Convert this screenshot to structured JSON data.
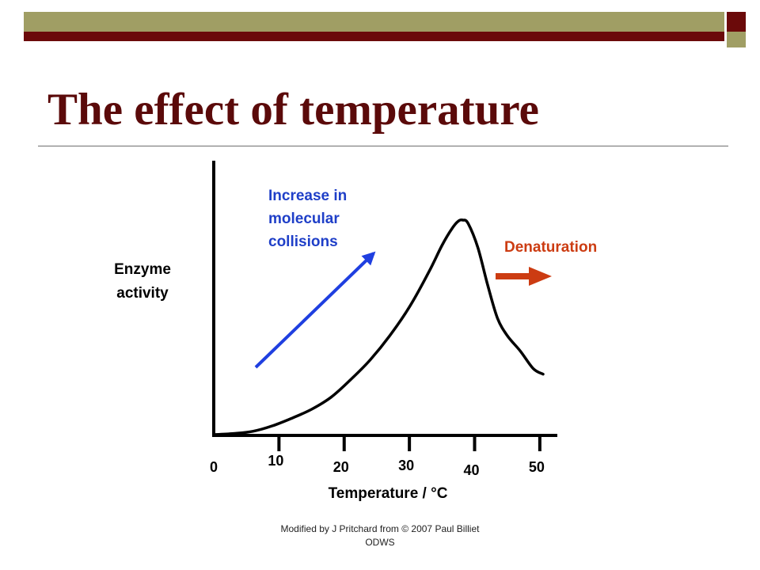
{
  "slide": {
    "title": "The effect of temperature",
    "footer_line1": "Modified by J Pritchard from © 2007 Paul Billiet",
    "footer_line2": "ODWS"
  },
  "theme": {
    "olive": "#a09e64",
    "maroon": "#6b0a0a",
    "title_color": "#5b0a0a",
    "blue_arrow": "#1f3fe0",
    "annotation_blue": "#1f3fc8",
    "denature_color": "#cc3c12"
  },
  "chart_data": {
    "type": "line",
    "title": "",
    "xlabel": "Temperature / °C",
    "ylabel_lines": [
      "Enzyme",
      "activity"
    ],
    "xlim": [
      0,
      52
    ],
    "ylim": [
      0,
      100
    ],
    "grid": false,
    "legend": "none",
    "x_ticks": [
      0,
      10,
      20,
      30,
      40,
      50
    ],
    "series": [
      {
        "x": [
          0,
          3,
          6,
          9,
          12,
          15,
          18,
          21,
          24,
          27,
          30,
          33,
          35,
          36.5,
          37.5,
          38.2,
          39,
          40.5,
          42,
          43.5,
          45,
          47,
          49,
          50.5
        ],
        "y": [
          0,
          0.5,
          1.5,
          4,
          7.5,
          11.5,
          17,
          25,
          34,
          45,
          58,
          74,
          86,
          93.5,
          97,
          97.5,
          96,
          85,
          68,
          53,
          45,
          38,
          30,
          27.5
        ]
      }
    ],
    "annotations": [
      {
        "lines": [
          "Increase in",
          "molecular",
          "collisions"
        ],
        "color": "#1f3fc8"
      },
      {
        "text": "Denaturation",
        "color": "#cc3c12"
      }
    ]
  }
}
